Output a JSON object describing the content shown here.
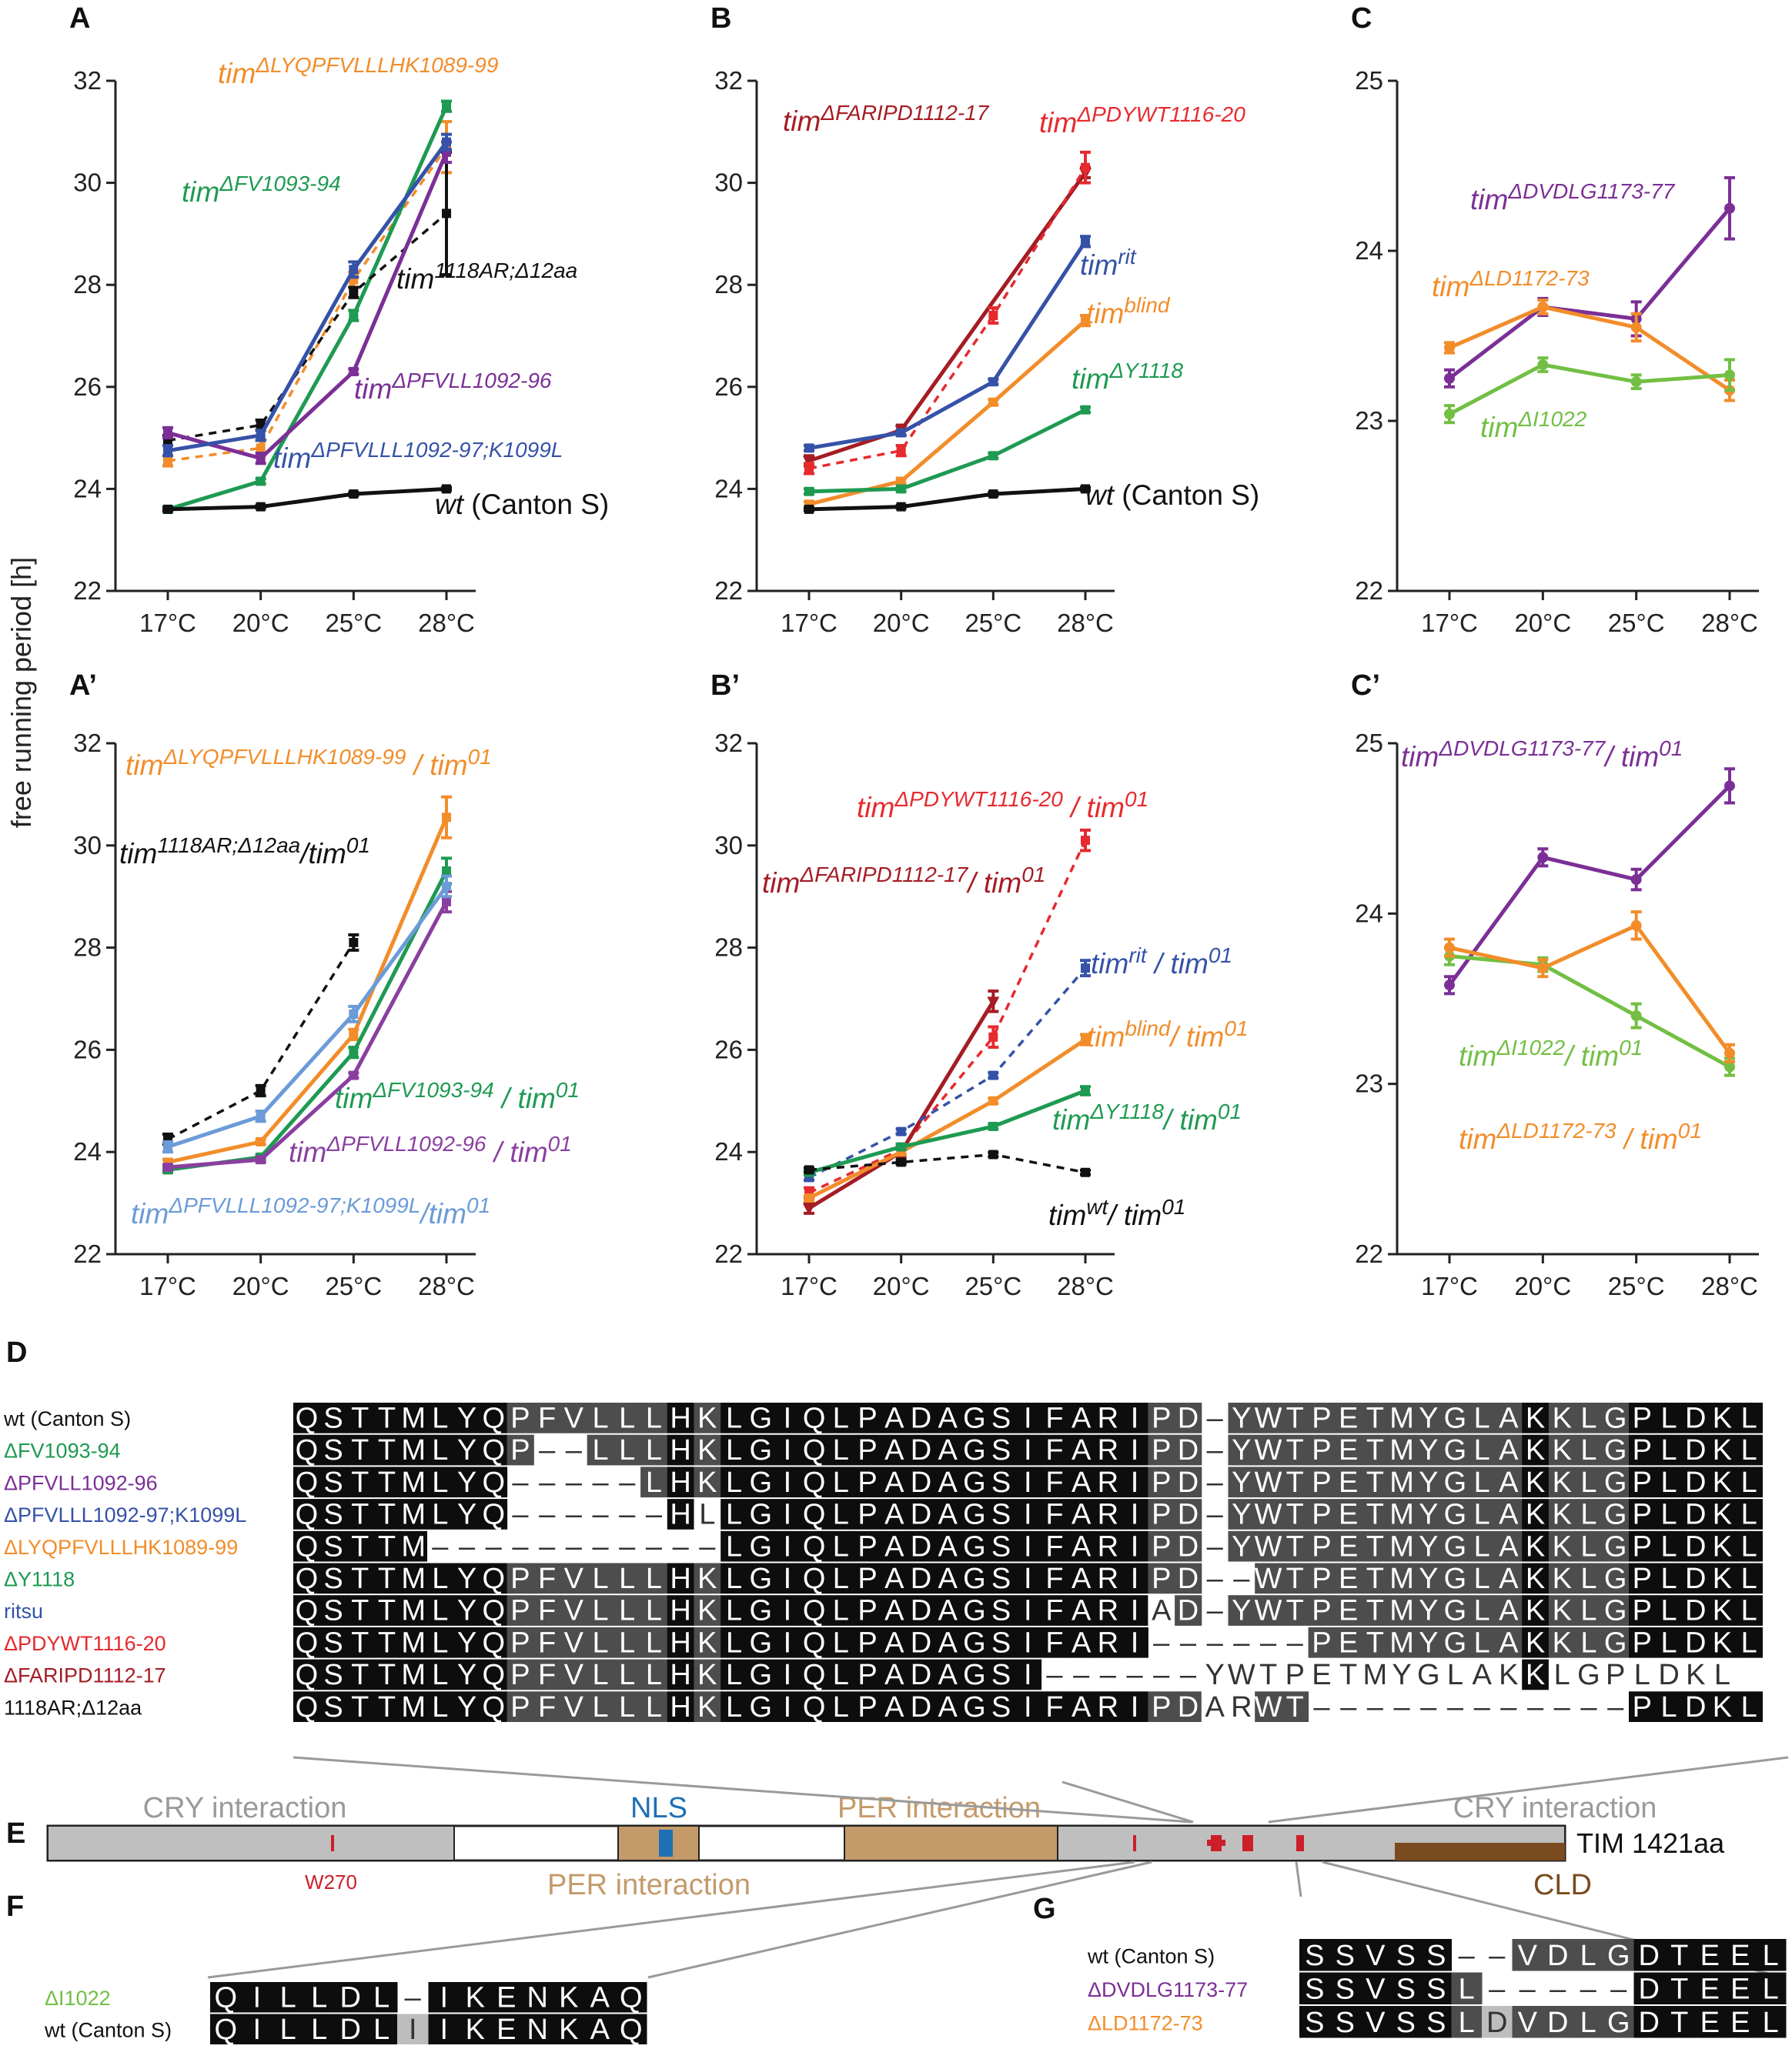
{
  "figure": {
    "ylabel": "free running period [h]",
    "temperatures": [
      "17°C",
      "20°C",
      "25°C",
      "28°C"
    ],
    "colors": {
      "black": "#111111",
      "orange": "#f28d2a",
      "green": "#1e9a52",
      "purple": "#7b2f96",
      "blue": "#3552a8",
      "light_blue": "#6b9bd8",
      "dark_red": "#a51c24",
      "red": "#e62a2e",
      "lime": "#72bf44",
      "violet": "#8a3fa0"
    }
  },
  "chart_data": [
    {
      "id": "A",
      "type": "line",
      "title": "A",
      "categories": [
        "17°C",
        "20°C",
        "25°C",
        "28°C"
      ],
      "ylabel": "free running period [h]",
      "ylim": [
        22,
        32
      ],
      "yticks": [
        22,
        24,
        26,
        28,
        30,
        32
      ],
      "series": [
        {
          "name": "tim ΔLYQPFVLLLHK1089-99",
          "base": "tim",
          "sup": "ΔLYQPFVLLLHK1089-99",
          "suffix": "",
          "color": "orange",
          "dashed": true,
          "marker": "square",
          "values": [
            24.55,
            24.8,
            28.1,
            30.7
          ],
          "errors": [
            0.1,
            0.15,
            0.15,
            0.5
          ]
        },
        {
          "name": "tim ΔFV1093-94",
          "base": "tim",
          "sup": "ΔFV1093-94",
          "suffix": "",
          "color": "green",
          "dashed": false,
          "marker": "square",
          "values": [
            23.6,
            24.15,
            27.4,
            31.5
          ],
          "errors": [
            0.05,
            0.05,
            0.1,
            0.1
          ]
        },
        {
          "name": "tim 1118AR;Δ12aa",
          "base": "tim",
          "sup": "1118AR;Δ12aa",
          "suffix": "",
          "color": "black",
          "dashed": true,
          "marker": "square",
          "values": [
            24.95,
            25.25,
            27.85,
            29.4
          ],
          "errors": [
            0.1,
            0.1,
            0.1,
            1.2
          ]
        },
        {
          "name": "tim ΔPFVLL1092-96",
          "base": "tim",
          "sup": "ΔPFVLL1092-96",
          "suffix": "",
          "color": "purple",
          "dashed": false,
          "marker": "square",
          "values": [
            25.1,
            24.6,
            26.3,
            30.6
          ],
          "errors": [
            0.1,
            0.1,
            0.05,
            0.2
          ]
        },
        {
          "name": "tim ΔPFVLLL1092-97;K1099L",
          "base": "tim",
          "sup": "ΔPFVLLL1092-97;K1099L",
          "suffix": "",
          "color": "blue",
          "dashed": false,
          "marker": "square",
          "values": [
            24.75,
            25.05,
            28.3,
            30.8
          ],
          "errors": [
            0.1,
            0.1,
            0.15,
            0.15
          ]
        },
        {
          "name": "wt (Canton S)",
          "base": "wt",
          "sup": "",
          "suffix": " (Canton S)",
          "color": "black",
          "dashed": false,
          "marker": "square",
          "values": [
            23.6,
            23.65,
            23.9,
            24.0
          ],
          "errors": [
            0.03,
            0.03,
            0.03,
            0.03
          ]
        }
      ]
    },
    {
      "id": "B",
      "type": "line",
      "title": "B",
      "categories": [
        "17°C",
        "20°C",
        "25°C",
        "28°C"
      ],
      "ylabel": "",
      "ylim": [
        22,
        32
      ],
      "yticks": [
        22,
        24,
        26,
        28,
        30,
        32
      ],
      "series": [
        {
          "name": "tim ΔFARIPD1112-17",
          "base": "tim",
          "sup": "ΔFARIPD1112-17",
          "suffix": "",
          "color": "dark_red",
          "dashed": false,
          "marker": "triangle",
          "values": [
            24.55,
            25.15,
            null,
            30.2
          ],
          "errors": [
            0.1,
            0.1,
            null,
            0.1
          ]
        },
        {
          "name": "tim ΔPDYWT1116-20",
          "base": "tim",
          "sup": "ΔPDYWT1116-20",
          "suffix": "",
          "color": "red",
          "dashed": true,
          "marker": "square",
          "values": [
            24.4,
            24.75,
            27.4,
            30.3
          ],
          "errors": [
            0.1,
            0.1,
            0.15,
            0.3
          ]
        },
        {
          "name": "tim rit",
          "base": "tim",
          "sup": "rit",
          "suffix": "",
          "color": "blue",
          "dashed": false,
          "marker": "square",
          "values": [
            24.8,
            25.1,
            26.1,
            28.85
          ],
          "errors": [
            0.05,
            0.05,
            0.05,
            0.1
          ]
        },
        {
          "name": "tim blind",
          "base": "tim",
          "sup": "blind",
          "suffix": "",
          "color": "orange",
          "dashed": false,
          "marker": "square",
          "values": [
            23.7,
            24.15,
            25.7,
            27.3
          ],
          "errors": [
            0.05,
            0.05,
            0.05,
            0.1
          ]
        },
        {
          "name": "tim ΔY1118",
          "base": "tim",
          "sup": "ΔY1118",
          "suffix": "",
          "color": "green",
          "dashed": false,
          "marker": "square",
          "values": [
            23.95,
            24.0,
            24.65,
            25.55
          ],
          "errors": [
            0.05,
            0.05,
            0.05,
            0.05
          ]
        },
        {
          "name": "wt (Canton S)",
          "base": "wt",
          "sup": "",
          "suffix": " (Canton S)",
          "color": "black",
          "dashed": false,
          "marker": "square",
          "values": [
            23.6,
            23.65,
            23.9,
            24.0
          ],
          "errors": [
            0.03,
            0.03,
            0.03,
            0.03
          ]
        }
      ]
    },
    {
      "id": "C",
      "type": "line",
      "title": "C",
      "categories": [
        "17°C",
        "20°C",
        "25°C",
        "28°C"
      ],
      "ylabel": "",
      "ylim": [
        22,
        25
      ],
      "yticks": [
        22,
        23,
        24,
        25
      ],
      "series": [
        {
          "name": "tim ΔDVDLG1173-77",
          "base": "tim",
          "sup": "ΔDVDLG1173-77",
          "suffix": "",
          "color": "purple",
          "dashed": false,
          "marker": "circle",
          "values": [
            23.25,
            23.67,
            23.6,
            24.25
          ],
          "errors": [
            0.05,
            0.05,
            0.1,
            0.18
          ]
        },
        {
          "name": "tim ΔLD1172-73",
          "base": "tim",
          "sup": "ΔLD1172-73",
          "suffix": "",
          "color": "orange",
          "dashed": false,
          "marker": "circle",
          "values": [
            23.43,
            23.67,
            23.55,
            23.18
          ],
          "errors": [
            0.03,
            0.04,
            0.08,
            0.06
          ]
        },
        {
          "name": "tim ΔI1022",
          "base": "tim",
          "sup": "ΔI1022",
          "suffix": "",
          "color": "lime",
          "dashed": false,
          "marker": "circle",
          "values": [
            23.04,
            23.33,
            23.23,
            23.27
          ],
          "errors": [
            0.05,
            0.04,
            0.04,
            0.09
          ]
        }
      ]
    },
    {
      "id": "A'",
      "type": "line",
      "title": "A’",
      "categories": [
        "17°C",
        "20°C",
        "25°C",
        "28°C"
      ],
      "ylabel": "",
      "ylim": [
        22,
        32
      ],
      "yticks": [
        22,
        24,
        26,
        28,
        30,
        32
      ],
      "series": [
        {
          "name": "tim ΔLYQPFVLLLHK1089-99 / tim 01",
          "base": "tim",
          "sup": "ΔLYQPFVLLLHK1089-99",
          "suffix": " / tim",
          "sup2": "01",
          "color": "orange",
          "dashed": false,
          "marker": "square",
          "values": [
            23.8,
            24.2,
            26.3,
            30.55
          ],
          "errors": [
            0.05,
            0.05,
            0.1,
            0.4
          ]
        },
        {
          "name": "tim 1118AR;Δ12aa / tim 01",
          "base": "tim",
          "sup": "1118AR;Δ12aa",
          "suffix": "/tim",
          "sup2": "01",
          "color": "black",
          "dashed": true,
          "marker": "square",
          "values": [
            24.25,
            25.2,
            28.1,
            null
          ],
          "errors": [
            0.1,
            0.1,
            0.15,
            null
          ]
        },
        {
          "name": "tim ΔFV1093-94 / tim 01",
          "base": "tim",
          "sup": "ΔFV1093-94",
          "suffix": " / tim",
          "sup2": "01",
          "color": "green",
          "dashed": false,
          "marker": "square",
          "values": [
            23.65,
            23.9,
            25.95,
            29.5
          ],
          "errors": [
            0.05,
            0.05,
            0.1,
            0.25
          ]
        },
        {
          "name": "tim ΔPFVLL1092-96 / tim 01",
          "base": "tim",
          "sup": "ΔPFVLL1092-96",
          "suffix": " / tim",
          "sup2": "01",
          "color": "violet",
          "dashed": false,
          "marker": "square",
          "values": [
            23.7,
            23.85,
            25.5,
            28.9
          ],
          "errors": [
            0.05,
            0.05,
            0.05,
            0.2
          ]
        },
        {
          "name": "tim ΔPFVLLL1092-97;K1099L / tim 01",
          "base": "tim",
          "sup": "ΔPFVLLL1092-97;K1099L",
          "suffix": "/tim",
          "sup2": "01",
          "color": "light_blue",
          "dashed": false,
          "marker": "square",
          "values": [
            24.1,
            24.7,
            26.7,
            29.2
          ],
          "errors": [
            0.1,
            0.1,
            0.15,
            0.2
          ]
        }
      ]
    },
    {
      "id": "B'",
      "type": "line",
      "title": "B’",
      "categories": [
        "17°C",
        "20°C",
        "25°C",
        "28°C"
      ],
      "ylabel": "",
      "ylim": [
        22,
        32
      ],
      "yticks": [
        22,
        24,
        26,
        28,
        30,
        32
      ],
      "series": [
        {
          "name": "tim ΔPDYWT1116-20 / tim 01",
          "base": "tim",
          "sup": "ΔPDYWT1116-20",
          "suffix": " / tim",
          "sup2": "01",
          "color": "red",
          "dashed": true,
          "marker": "square",
          "values": [
            23.2,
            24.05,
            26.25,
            30.1
          ],
          "errors": [
            0.1,
            0.1,
            0.2,
            0.2
          ]
        },
        {
          "name": "tim ΔFARIPD1112-17 / tim 01",
          "base": "tim",
          "sup": "ΔFARIPD1112-17",
          "suffix": "/ tim",
          "sup2": "01",
          "color": "dark_red",
          "dashed": false,
          "marker": "triangle",
          "values": [
            22.9,
            24.0,
            26.95,
            null
          ],
          "errors": [
            0.1,
            0.1,
            0.2,
            null
          ]
        },
        {
          "name": "tim rit / tim 01",
          "base": "tim",
          "sup": "rit",
          "suffix": " / tim",
          "sup2": "01",
          "color": "blue",
          "dashed": true,
          "marker": "square",
          "values": [
            23.5,
            24.4,
            25.5,
            27.6
          ],
          "errors": [
            0.05,
            0.05,
            0.05,
            0.15
          ]
        },
        {
          "name": "tim blind / tim 01",
          "base": "tim",
          "sup": "blind",
          "suffix": "/ tim",
          "sup2": "01",
          "color": "orange",
          "dashed": false,
          "marker": "square",
          "values": [
            23.1,
            24.0,
            25.0,
            26.2
          ],
          "errors": [
            0.05,
            0.05,
            0.05,
            0.1
          ]
        },
        {
          "name": "tim ΔY1118 / tim 01",
          "base": "tim",
          "sup": "ΔY1118",
          "suffix": "/ tim",
          "sup2": "01",
          "color": "green",
          "dashed": false,
          "marker": "square",
          "values": [
            23.6,
            24.1,
            24.5,
            25.2
          ],
          "errors": [
            0.05,
            0.05,
            0.05,
            0.08
          ]
        },
        {
          "name": "tim wt / tim 01",
          "base": "tim",
          "sup": "wt",
          "suffix": "/ tim",
          "sup2": "01",
          "color": "black",
          "dashed": true,
          "marker": "square",
          "values": [
            23.65,
            23.8,
            23.95,
            23.6
          ],
          "errors": [
            0.04,
            0.04,
            0.04,
            0.04
          ]
        }
      ]
    },
    {
      "id": "C'",
      "type": "line",
      "title": "C’",
      "categories": [
        "17°C",
        "20°C",
        "25°C",
        "28°C"
      ],
      "ylabel": "",
      "ylim": [
        22,
        25
      ],
      "yticks": [
        22,
        23,
        24,
        25
      ],
      "series": [
        {
          "name": "tim ΔDVDLG1173-77 / tim 01",
          "base": "tim",
          "sup": "ΔDVDLG1173-77",
          "suffix": "/ tim",
          "sup2": "01",
          "color": "purple",
          "dashed": false,
          "marker": "circle",
          "values": [
            23.58,
            24.33,
            24.2,
            24.75
          ],
          "errors": [
            0.05,
            0.05,
            0.06,
            0.1
          ]
        },
        {
          "name": "tim ΔI1022 / tim 01",
          "base": "tim",
          "sup": "ΔI1022",
          "suffix": "/ tim",
          "sup2": "01",
          "color": "lime",
          "dashed": false,
          "marker": "circle",
          "values": [
            23.75,
            23.7,
            23.4,
            23.1
          ],
          "errors": [
            0.05,
            0.04,
            0.07,
            0.05
          ]
        },
        {
          "name": "tim ΔLD1172-73 / tim 01",
          "base": "tim",
          "sup": "ΔLD1172-73",
          "suffix": " / tim",
          "sup2": "01",
          "color": "orange",
          "dashed": false,
          "marker": "circle",
          "values": [
            23.8,
            23.68,
            23.93,
            23.18
          ],
          "errors": [
            0.05,
            0.05,
            0.08,
            0.05
          ]
        }
      ]
    }
  ],
  "alignment_D": {
    "label": "D",
    "rows": [
      {
        "name": "wt (Canton S)",
        "color": "black",
        "seq": "QSTTMLYQPFVLLLHKLGIQLPADAGSIFARIPD-YWTPETMYGLAKKLGPLDKL"
      },
      {
        "name": "ΔFV1093-94",
        "color": "green",
        "seq": "QSTTMLYQP--LLLHKLGIQLPADAGSIFARIPD-YWTPETMYGLAKKLGPLDKL"
      },
      {
        "name": "ΔPFVLL1092-96",
        "color": "purple",
        "seq": "QSTTMLYQ-----LHKLGIQLPADAGSIFARIPD-YWTPETMYGLAKKLGPLDKL"
      },
      {
        "name": "ΔPFVLLL1092-97;K1099L",
        "color": "blue",
        "seq": "QSTTMLYQ------HLLGIQLPADAGSIFARIPD-YWTPETMYGLAKKLGPLDKL"
      },
      {
        "name": "ΔLYQPFVLLLHK1089-99",
        "color": "orange",
        "seq": "QSTTM-----------LGIQLPADAGSIFARIPD-YWTPETMYGLAKKLGPLDKL"
      },
      {
        "name": "ΔY1118",
        "color": "green",
        "seq": "QSTTMLYQPFVLLLHKLGIQLPADAGSIFARIPD--WTPETMYGLAKKLGPLDKL"
      },
      {
        "name": "ritsu",
        "color": "blue",
        "seq": "QSTTMLYQPFVLLLHKLGIQLPADAGSIFARIAD-YWTPETMYGLAKKLGPLDKL"
      },
      {
        "name": "ΔPDYWT1116-20",
        "color": "red",
        "seq": "QSTTMLYQPFVLLLHKLGIQLPADAGSIFARI------PETMYGLAKKLGPLDKL"
      },
      {
        "name": "ΔFARIPD1112-17",
        "color": "dark_red",
        "seq": "QSTTMLYQPFVLLLHKLGIQLPADAGSI------YWTPETMYGLAKKLGPLDKL"
      },
      {
        "name": "1118AR;Δ12aa",
        "color": "black",
        "seq": "QSTTMLYQPFVLLLHKLGIQLPADAGSIFARIPDARWT------------PLDKL"
      }
    ]
  },
  "domain_E": {
    "label": "E",
    "regions": {
      "cry_n": "CRY interaction",
      "nls": "NLS",
      "per_top": "PER interaction",
      "per_bottom": "PER interaction",
      "cry_c": "CRY interaction",
      "cld": "CLD"
    },
    "w270": "W270",
    "protein": "TIM 1421aa",
    "colors": {
      "grey": "#bfbfbf",
      "tan": "#c49a6a",
      "nls": "#1f6fb5",
      "cld": "#7a4b1e",
      "mark": "#cc1f2a"
    }
  },
  "alignment_F": {
    "label": "F",
    "rows": [
      {
        "name": "ΔI1022",
        "color": "lime",
        "seq": "QILLDL-IKENKAQ"
      },
      {
        "name": "wt (Canton S)",
        "color": "black",
        "seq": "QILLDLIIKENKAQ"
      }
    ]
  },
  "alignment_G": {
    "label": "G",
    "rows": [
      {
        "name": "wt (Canton S)",
        "color": "black",
        "seq": "SSVSS--VDLGDTEEL"
      },
      {
        "name": "ΔDVDLG1173-77",
        "color": "purple",
        "seq": "SSVSSL-----DTEEL"
      },
      {
        "name": "ΔLD1172-73",
        "color": "orange",
        "seq": "SSVSSLDVDLGDTEEL"
      }
    ]
  }
}
